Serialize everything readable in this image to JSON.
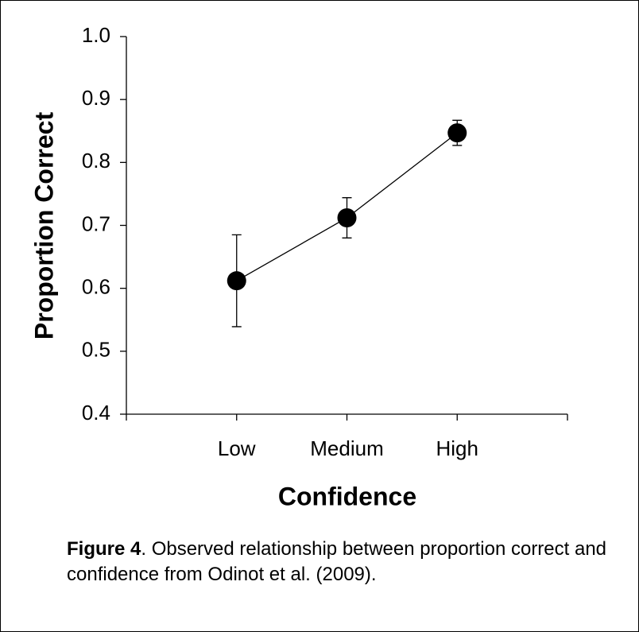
{
  "chart_data": {
    "type": "line",
    "x_label": "Confidence",
    "y_label": "Proportion Correct",
    "categories": [
      "Low",
      "Medium",
      "High"
    ],
    "values": [
      0.612,
      0.712,
      0.847
    ],
    "errors": [
      0.073,
      0.032,
      0.02
    ],
    "color": "#000000",
    "ylim": [
      0.4,
      1.0
    ],
    "yticks": [
      {
        "value": 0.4,
        "label": "0.4"
      },
      {
        "value": 0.5,
        "label": "0.5"
      },
      {
        "value": 0.6,
        "label": "0.6"
      },
      {
        "value": 0.7,
        "label": "0.7"
      },
      {
        "value": 0.8,
        "label": "0.8"
      },
      {
        "value": 0.9,
        "label": "0.9"
      },
      {
        "value": 1.0,
        "label": "1.0"
      }
    ],
    "grid": false,
    "caption_label": "Figure 4",
    "caption_text": ". Observed relationship between proportion correct and confidence from Odinot et al. (2009)."
  }
}
